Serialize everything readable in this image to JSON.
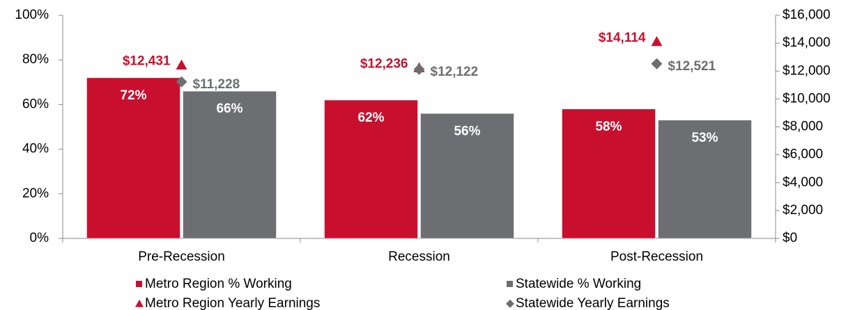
{
  "chart_data": {
    "type": "bar",
    "categories": [
      "Pre-Recession",
      "Recession",
      "Post-Recession"
    ],
    "series": [
      {
        "name": "Metro Region % Working",
        "type": "bar",
        "color": "#c8102e",
        "values": [
          72,
          62,
          58
        ],
        "value_labels": [
          "72%",
          "62%",
          "58%"
        ]
      },
      {
        "name": "Statewide % Working",
        "type": "bar",
        "color": "#6d6e71",
        "values": [
          66,
          56,
          53
        ],
        "value_labels": [
          "66%",
          "56%",
          "53%"
        ]
      },
      {
        "name": "Metro Region Yearly Earnings",
        "type": "scatter",
        "marker": "triangle",
        "axis": "y2",
        "color": "#c8102e",
        "values": [
          12431,
          12236,
          14114
        ],
        "value_labels": [
          "$12,431",
          "$12,236",
          "$14,114"
        ]
      },
      {
        "name": "Statewide Yearly Earnings",
        "type": "scatter",
        "marker": "diamond",
        "axis": "y2",
        "color": "#6d6e71",
        "values": [
          11228,
          12122,
          12521
        ],
        "value_labels": [
          "$11,228",
          "$12,122",
          "$12,521"
        ]
      }
    ],
    "ylim": [
      0,
      100
    ],
    "yticks": [
      {
        "value": 0,
        "label": "0%"
      },
      {
        "value": 20,
        "label": "20%"
      },
      {
        "value": 40,
        "label": "40%"
      },
      {
        "value": 60,
        "label": "60%"
      },
      {
        "value": 80,
        "label": "80%"
      },
      {
        "value": 100,
        "label": "100%"
      }
    ],
    "y2lim": [
      0,
      16000
    ],
    "y2ticks": [
      {
        "value": 0,
        "label": "$0"
      },
      {
        "value": 2000,
        "label": "$2,000"
      },
      {
        "value": 4000,
        "label": "$4,000"
      },
      {
        "value": 6000,
        "label": "$6,000"
      },
      {
        "value": 8000,
        "label": "$8,000"
      },
      {
        "value": 10000,
        "label": "$10,000"
      },
      {
        "value": 12000,
        "label": "$12,000"
      },
      {
        "value": 14000,
        "label": "$14,000"
      },
      {
        "value": 16000,
        "label": "$16,000"
      }
    ],
    "grid": false
  }
}
